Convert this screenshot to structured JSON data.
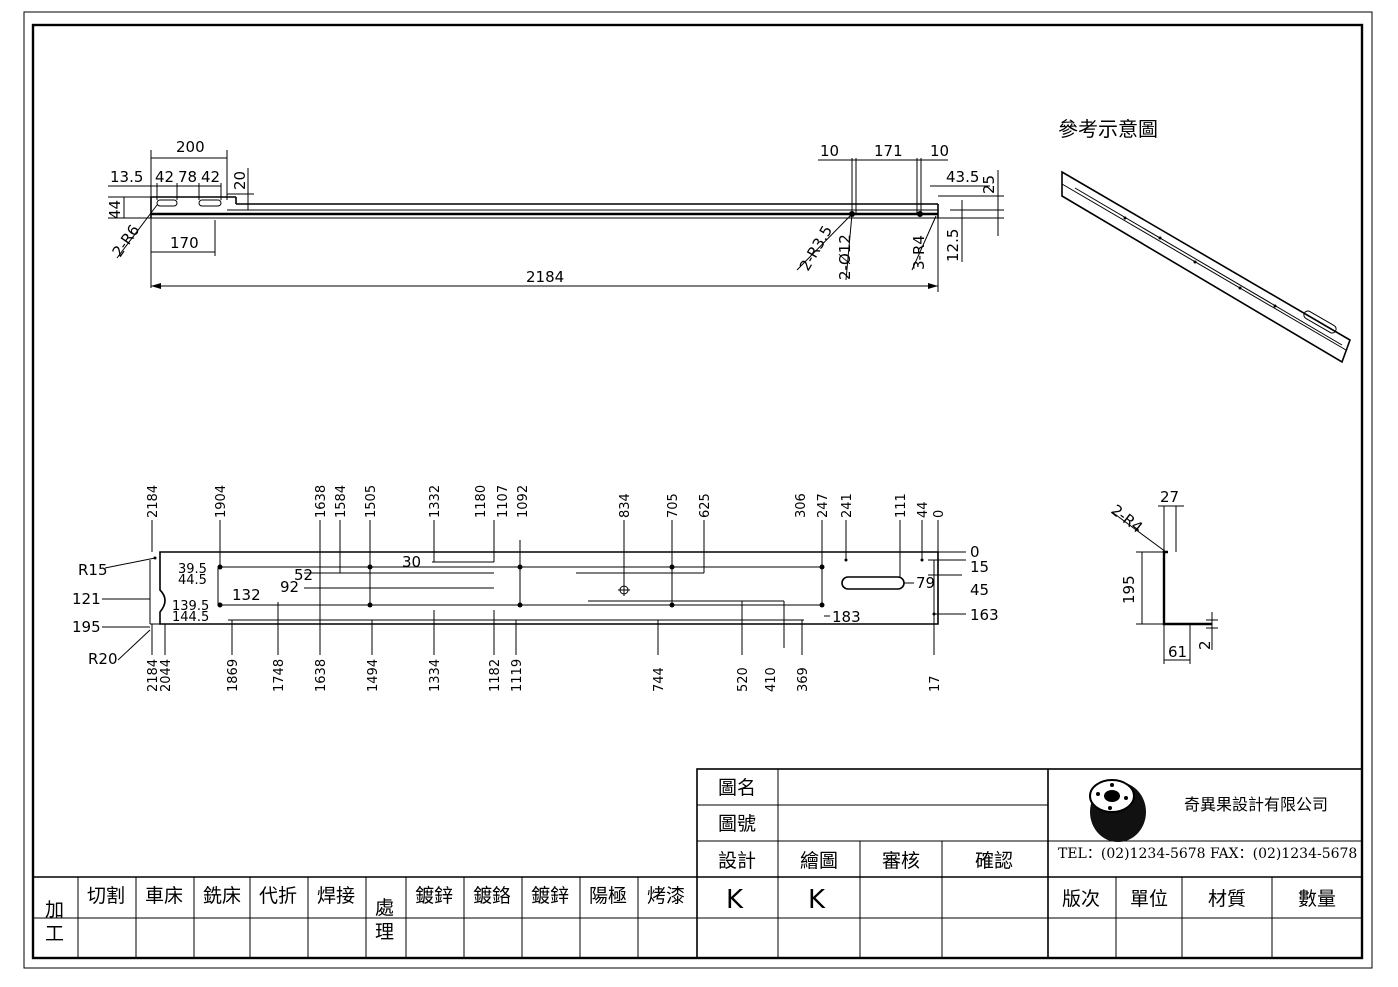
{
  "reference_title": "參考示意圖",
  "top_view": {
    "left": [
      "200",
      "13.5",
      "42",
      "78",
      "42",
      "20",
      "44",
      "2-R6",
      "170"
    ],
    "right": [
      "10",
      "171",
      "10",
      "43.5",
      "25",
      "2-R3.5",
      "2-Ø12",
      "3-R4",
      "12.5"
    ],
    "overall": "2184"
  },
  "flat_view": {
    "top_dims": [
      "2184",
      "1904",
      "1638",
      "1584",
      "1505",
      "1332",
      "1180",
      "1107",
      "1092",
      "834",
      "705",
      "625",
      "306",
      "247",
      "241",
      "111",
      "44",
      "0"
    ],
    "bottom_dims": [
      "2184",
      "2044",
      "1869",
      "1748",
      "1638",
      "1494",
      "1334",
      "1182",
      "1119",
      "744",
      "520",
      "410",
      "369",
      "17"
    ],
    "left_dims": [
      "R15",
      "121",
      "195",
      "R20"
    ],
    "inner": [
      "39.5",
      "44.5",
      "139.5",
      "144.5",
      "132",
      "92",
      "52",
      "30",
      "183",
      "79"
    ],
    "right_dims": [
      "0",
      "15",
      "45",
      "163"
    ]
  },
  "section": {
    "radius": "2-R4",
    "top": "27",
    "height": "195",
    "base": "61",
    "thk": "2"
  },
  "title_block": {
    "drawing_name": "圖名",
    "drawing_no": "圖號",
    "design": "設計",
    "draft": "繪圖",
    "review": "審核",
    "confirm": "確認",
    "design_val": "K",
    "draft_val": "K",
    "company": "奇異果設計有限公司",
    "contact": "TEL：(02)1234-5678  FAX：(02)1234-5678",
    "version": "版次",
    "unit": "單位",
    "material": "材質",
    "qty": "數量",
    "process_1": "加",
    "process_2": "工",
    "processes": [
      "切割",
      "車床",
      "銑床",
      "代折",
      "焊接"
    ],
    "treat_1": "處",
    "treat_2": "理",
    "treatments": [
      "鍍鋅",
      "鍍鉻",
      "鍍鋅",
      "陽極",
      "烤漆"
    ]
  }
}
